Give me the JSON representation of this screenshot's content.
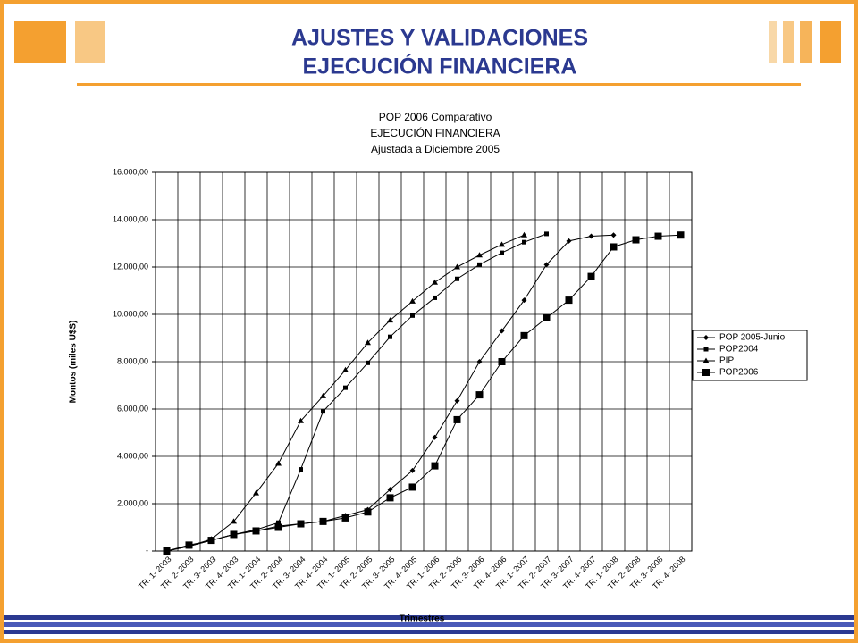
{
  "header": {
    "title_lines": [
      "AJUSTES Y VALIDACIONES",
      "EJECUCIÓN FINANCIERA"
    ]
  },
  "chart_data": {
    "type": "line",
    "title_lines": [
      "POP 2006 Comparativo",
      "EJECUCIÓN FINANCIERA",
      "Ajustada a Diciembre 2005"
    ],
    "y_label": "Montos (miles U$S)",
    "x_label": "Trimestres",
    "categories": [
      "TR. 1- 2003",
      "TR. 2- 2003",
      "TR. 3- 2003",
      "TR. 4- 2003",
      "TR. 1- 2004",
      "TR. 2- 2004",
      "TR. 3- 2004",
      "TR. 4- 2004",
      "TR. 1- 2005",
      "TR. 2- 2005",
      "TR. 3- 2005",
      "TR. 4- 2005",
      "TR. 1- 2006",
      "TR. 2- 2006",
      "TR. 3- 2006",
      "TR. 4- 2006",
      "TR. 1- 2007",
      "TR. 2- 2007",
      "TR. 3- 2007",
      "TR. 4- 2007",
      "TR. 1- 2008",
      "TR. 2- 2008",
      "TR. 3- 2008",
      "TR. 4- 2008"
    ],
    "series": [
      {
        "name": "POP 2005-Junio",
        "color": "#000000",
        "marker": "diamond",
        "values": [
          0,
          200,
          450,
          700,
          850,
          1050,
          1150,
          1250,
          1500,
          1750,
          2600,
          3400,
          4800,
          6350,
          8000,
          9300,
          10600,
          12100,
          13100,
          13300,
          13350,
          null,
          null,
          null
        ]
      },
      {
        "name": "POP2004",
        "color": "#000000",
        "marker": "square",
        "values": [
          0,
          200,
          450,
          700,
          900,
          1200,
          3450,
          5900,
          6900,
          7950,
          9050,
          9950,
          10700,
          11500,
          12100,
          12600,
          13050,
          13400,
          null,
          null,
          null,
          null,
          null,
          null
        ]
      },
      {
        "name": "PIP",
        "color": "#000000",
        "marker": "triangle",
        "values": [
          0,
          200,
          500,
          1250,
          2450,
          3700,
          5500,
          6550,
          7650,
          8800,
          9750,
          10550,
          11350,
          12000,
          12500,
          12950,
          13350,
          null,
          null,
          null,
          null,
          null,
          null,
          null
        ]
      },
      {
        "name": "POP2006",
        "color": "#000000",
        "marker": "big-square",
        "values": [
          0,
          250,
          450,
          700,
          850,
          1000,
          1150,
          1250,
          1400,
          1650,
          2250,
          2700,
          3600,
          5550,
          6600,
          8000,
          9100,
          9850,
          10600,
          11600,
          12850,
          13150,
          13300,
          13350
        ]
      }
    ],
    "ylim": [
      0,
      16000
    ],
    "yticks": [
      {
        "value": 0,
        "label": "-"
      },
      {
        "value": 2000,
        "label": "2.000,00"
      },
      {
        "value": 4000,
        "label": "4.000,00"
      },
      {
        "value": 6000,
        "label": "6.000,00"
      },
      {
        "value": 8000,
        "label": "8.000,00"
      },
      {
        "value": 10000,
        "label": "10.000,00"
      },
      {
        "value": 12000,
        "label": "12.000,00"
      },
      {
        "value": 14000,
        "label": "14.000,00"
      },
      {
        "value": 16000,
        "label": "16.000,00"
      }
    ],
    "grid": true,
    "legend": "right"
  }
}
